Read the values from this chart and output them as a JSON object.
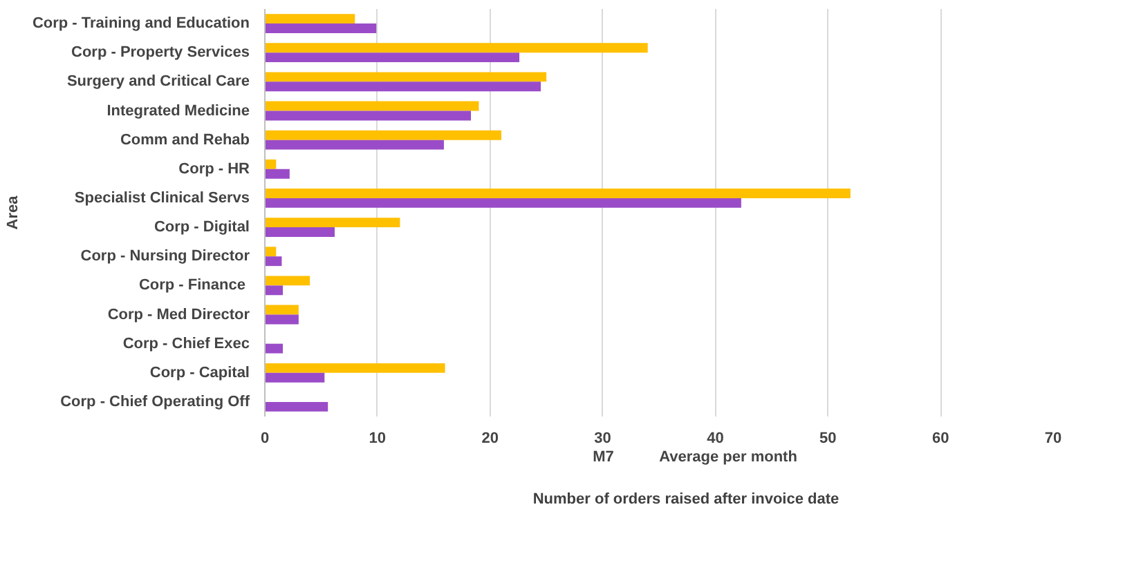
{
  "chart_data": {
    "type": "bar",
    "orientation": "horizontal",
    "xlabel": "Number of orders raised after invoice date",
    "ylabel": "Area",
    "categories": [
      "Corp - Training and Education",
      "Corp - Property Services",
      "Surgery and Critical Care",
      "Integrated Medicine",
      "Comm and Rehab",
      "Corp - HR",
      "Specialist Clinical Servs",
      "Corp - Digital",
      "Corp - Nursing Director",
      "Corp - Finance ",
      "Corp - Med Director",
      "Corp - Chief Exec",
      "Corp - Capital",
      "Corp - Chief Operating Off"
    ],
    "series": [
      {
        "name": "M7",
        "color": "#ffc000",
        "values": [
          8,
          34,
          25,
          19,
          21,
          1,
          52,
          12,
          1,
          4,
          3,
          null,
          16,
          null
        ]
      },
      {
        "name": "Average per month",
        "color": "#9a4cc8",
        "values": [
          9.9,
          22.6,
          24.5,
          18.3,
          15.9,
          2.2,
          42.3,
          6.2,
          1.5,
          1.6,
          3,
          1.6,
          5.3,
          5.6
        ]
      }
    ],
    "xlim": [
      0,
      70
    ],
    "xticks": [
      0,
      10,
      20,
      30,
      40,
      50,
      60,
      70
    ],
    "grid": "x",
    "legend": "bottom"
  }
}
